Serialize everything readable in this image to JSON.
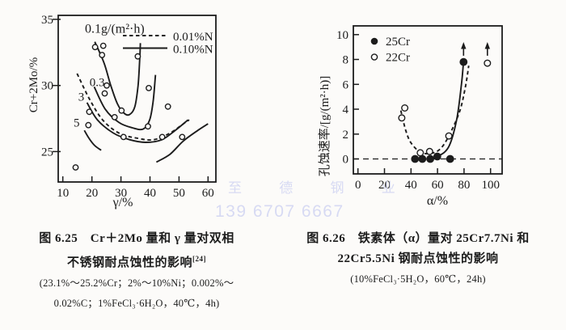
{
  "page": {
    "background": "#fcfbf9",
    "ink": "#1c1c1c"
  },
  "watermark": {
    "line1": "至 德 钢 业",
    "line2": "139 6707 6667",
    "color": "#d7daf3"
  },
  "figures": [
    {
      "caption": {
        "line1": "图 6.25　Cr＋2Mo 量和 γ 量对双相",
        "line2": "不锈钢耐点蚀性的影响",
        "sup": "[24]",
        "line3": "(23.1%～25.2%Cr；2%～10%Ni；0.002%～",
        "line4": "0.02%C；1%FeCl₃·6H₂O，40℃，4h)"
      }
    },
    {
      "caption": {
        "line1": "图 6.26　铁素体（α）量对 25Cr7.7Ni 和",
        "line2": "22Cr5.5Ni 钢耐点蚀性的影响",
        "line3": "(10%FeCl₃·5H₂O，60℃，24h)"
      }
    }
  ],
  "chart_data": [
    {
      "type": "scatter",
      "title": "",
      "xlabel": "γ/%",
      "ylabel": "Cr+2Mo/%",
      "xlim": [
        8.4,
        62.7
      ],
      "ylim": [
        22.7,
        35.3
      ],
      "xticks": [
        10,
        20,
        30,
        40,
        50,
        60
      ],
      "yticks": [
        25,
        30,
        35
      ],
      "ytick_side": "out",
      "grid": false,
      "legend_style": "lines",
      "legend": [
        {
          "label": "0.01%N",
          "style": "dashed"
        },
        {
          "label": "0.10%N",
          "style": "solid"
        }
      ],
      "annotations": [
        {
          "text": "0.1g/(m²·h)",
          "x": 17.6,
          "y": 34.0,
          "size": 16
        },
        {
          "text": "0.3",
          "x": 19.2,
          "y": 29.95,
          "size": 15
        },
        {
          "text": "3",
          "x": 15.3,
          "y": 28.85,
          "size": 15
        },
        {
          "text": "5",
          "x": 13.7,
          "y": 26.9,
          "size": 15
        }
      ],
      "series": [
        {
          "name": "experimental-points",
          "marker": "open",
          "r": 3.2,
          "points": [
            [
              21.1,
              32.9
            ],
            [
              23.9,
              33.0
            ],
            [
              23.5,
              32.3
            ],
            [
              35.8,
              32.2
            ],
            [
              25.1,
              30.0
            ],
            [
              24.4,
              29.4
            ],
            [
              39.6,
              29.8
            ],
            [
              19.1,
              28.0
            ],
            [
              27.8,
              27.6
            ],
            [
              30.2,
              28.1
            ],
            [
              46.2,
              28.4
            ],
            [
              18.8,
              27.0
            ],
            [
              39.3,
              26.9
            ],
            [
              30.9,
              26.1
            ],
            [
              44.2,
              26.1
            ],
            [
              51.1,
              26.1
            ],
            [
              14.4,
              23.8
            ]
          ]
        }
      ],
      "curves": [
        {
          "label": "contour-0.1",
          "style": "solid",
          "points": [
            [
              21.0,
              33.3
            ],
            [
              24.2,
              31.7
            ],
            [
              26.5,
              30.0
            ],
            [
              28.8,
              28.6
            ],
            [
              31.1,
              27.9
            ],
            [
              33.0,
              27.8
            ],
            [
              34.8,
              28.4
            ],
            [
              35.9,
              30.0
            ],
            [
              36.5,
              32.1
            ],
            [
              36.7,
              33.2
            ]
          ]
        },
        {
          "label": "contour-0.3",
          "style": "solid",
          "points": [
            [
              20.8,
              29.9
            ],
            [
              24.6,
              28.2
            ],
            [
              29.3,
              27.2
            ],
            [
              33.9,
              26.8
            ],
            [
              37.6,
              26.7
            ],
            [
              39.9,
              27.4
            ],
            [
              41.1,
              28.8
            ],
            [
              41.9,
              30.8
            ]
          ]
        },
        {
          "label": "contour-3",
          "style": "solid",
          "points": [
            [
              18.3,
              28.7
            ],
            [
              21.9,
              27.4
            ],
            [
              27.4,
              26.4
            ],
            [
              33.0,
              25.9
            ],
            [
              38.5,
              25.7
            ],
            [
              44.1,
              25.9
            ],
            [
              48.7,
              26.6
            ],
            [
              53.1,
              27.4
            ]
          ]
        },
        {
          "label": "contour-0.01N",
          "style": "dashed",
          "points": [
            [
              14.9,
              30.9
            ],
            [
              19.1,
              29.0
            ],
            [
              23.7,
              27.4
            ],
            [
              29.3,
              26.4
            ],
            [
              35.8,
              26.0
            ],
            [
              41.3,
              25.9
            ],
            [
              46.9,
              26.4
            ],
            [
              51.5,
              27.1
            ],
            [
              53.5,
              27.4
            ]
          ]
        },
        {
          "label": "contour-5",
          "style": "solid",
          "points": [
            [
              17.4,
              26.6
            ],
            [
              19.0,
              26.0
            ],
            [
              21.0,
              25.45
            ],
            [
              23.2,
              25.1
            ]
          ]
        },
        {
          "label": "contour-lower-right",
          "style": "solid",
          "points": [
            [
              42.2,
              24.2
            ],
            [
              46.9,
              24.8
            ],
            [
              51.5,
              25.8
            ],
            [
              56.5,
              26.6
            ],
            [
              60.0,
              27.1
            ]
          ]
        }
      ]
    },
    {
      "type": "scatter",
      "title": "",
      "xlabel": "α/%",
      "ylabel": "孔蚀速率/[g/(m²·h)]",
      "xlim": [
        -3.5,
        108.7
      ],
      "ylim": [
        -1.2,
        10.7
      ],
      "xticks": [
        0,
        20,
        40,
        60,
        80,
        100
      ],
      "yticks": [
        0,
        2,
        4,
        6,
        8,
        10
      ],
      "ytick_side": "in",
      "grid": false,
      "refline_y": 0,
      "legend_style": "markers",
      "legend": [
        {
          "label": "25Cr",
          "marker": "filled"
        },
        {
          "label": "22Cr",
          "marker": "open"
        }
      ],
      "annotations": [],
      "series": [
        {
          "name": "25Cr",
          "marker": "filled",
          "r": 4.2,
          "points": [
            [
              43,
              0
            ],
            [
              48.5,
              0
            ],
            [
              54.5,
              0
            ],
            [
              59.8,
              0.2
            ],
            [
              69.5,
              0
            ],
            [
              79.6,
              7.8
            ]
          ]
        },
        {
          "name": "22Cr",
          "marker": "open",
          "r": 3.8,
          "points": [
            [
              33,
              3.3
            ],
            [
              35.3,
              4.1
            ],
            [
              47,
              0.5
            ],
            [
              54,
              0.6
            ],
            [
              68.5,
              1.85
            ],
            [
              97.6,
              7.7
            ]
          ]
        }
      ],
      "curves": [
        {
          "label": "25Cr-curve",
          "style": "solid",
          "points": [
            [
              52,
              0.02
            ],
            [
              60,
              0.2
            ],
            [
              68.5,
              1.0
            ],
            [
              74.5,
              3.2
            ],
            [
              78,
              6.0
            ],
            [
              79.4,
              7.6
            ]
          ]
        },
        {
          "label": "22Cr-curve",
          "style": "dashed",
          "points": [
            [
              32.3,
              3.9
            ],
            [
              36,
              2.3
            ],
            [
              40,
              1.3
            ],
            [
              47,
              0.55
            ],
            [
              55,
              0.45
            ],
            [
              62,
              0.8
            ],
            [
              68.5,
              1.85
            ],
            [
              76.6,
              3.8
            ],
            [
              81,
              5.8
            ],
            [
              83.5,
              7.5
            ]
          ]
        }
      ],
      "arrows": [
        {
          "x": 79.6,
          "from": 8.3,
          "to": 9.4
        },
        {
          "x": 97.6,
          "from": 8.3,
          "to": 9.4
        }
      ]
    }
  ]
}
